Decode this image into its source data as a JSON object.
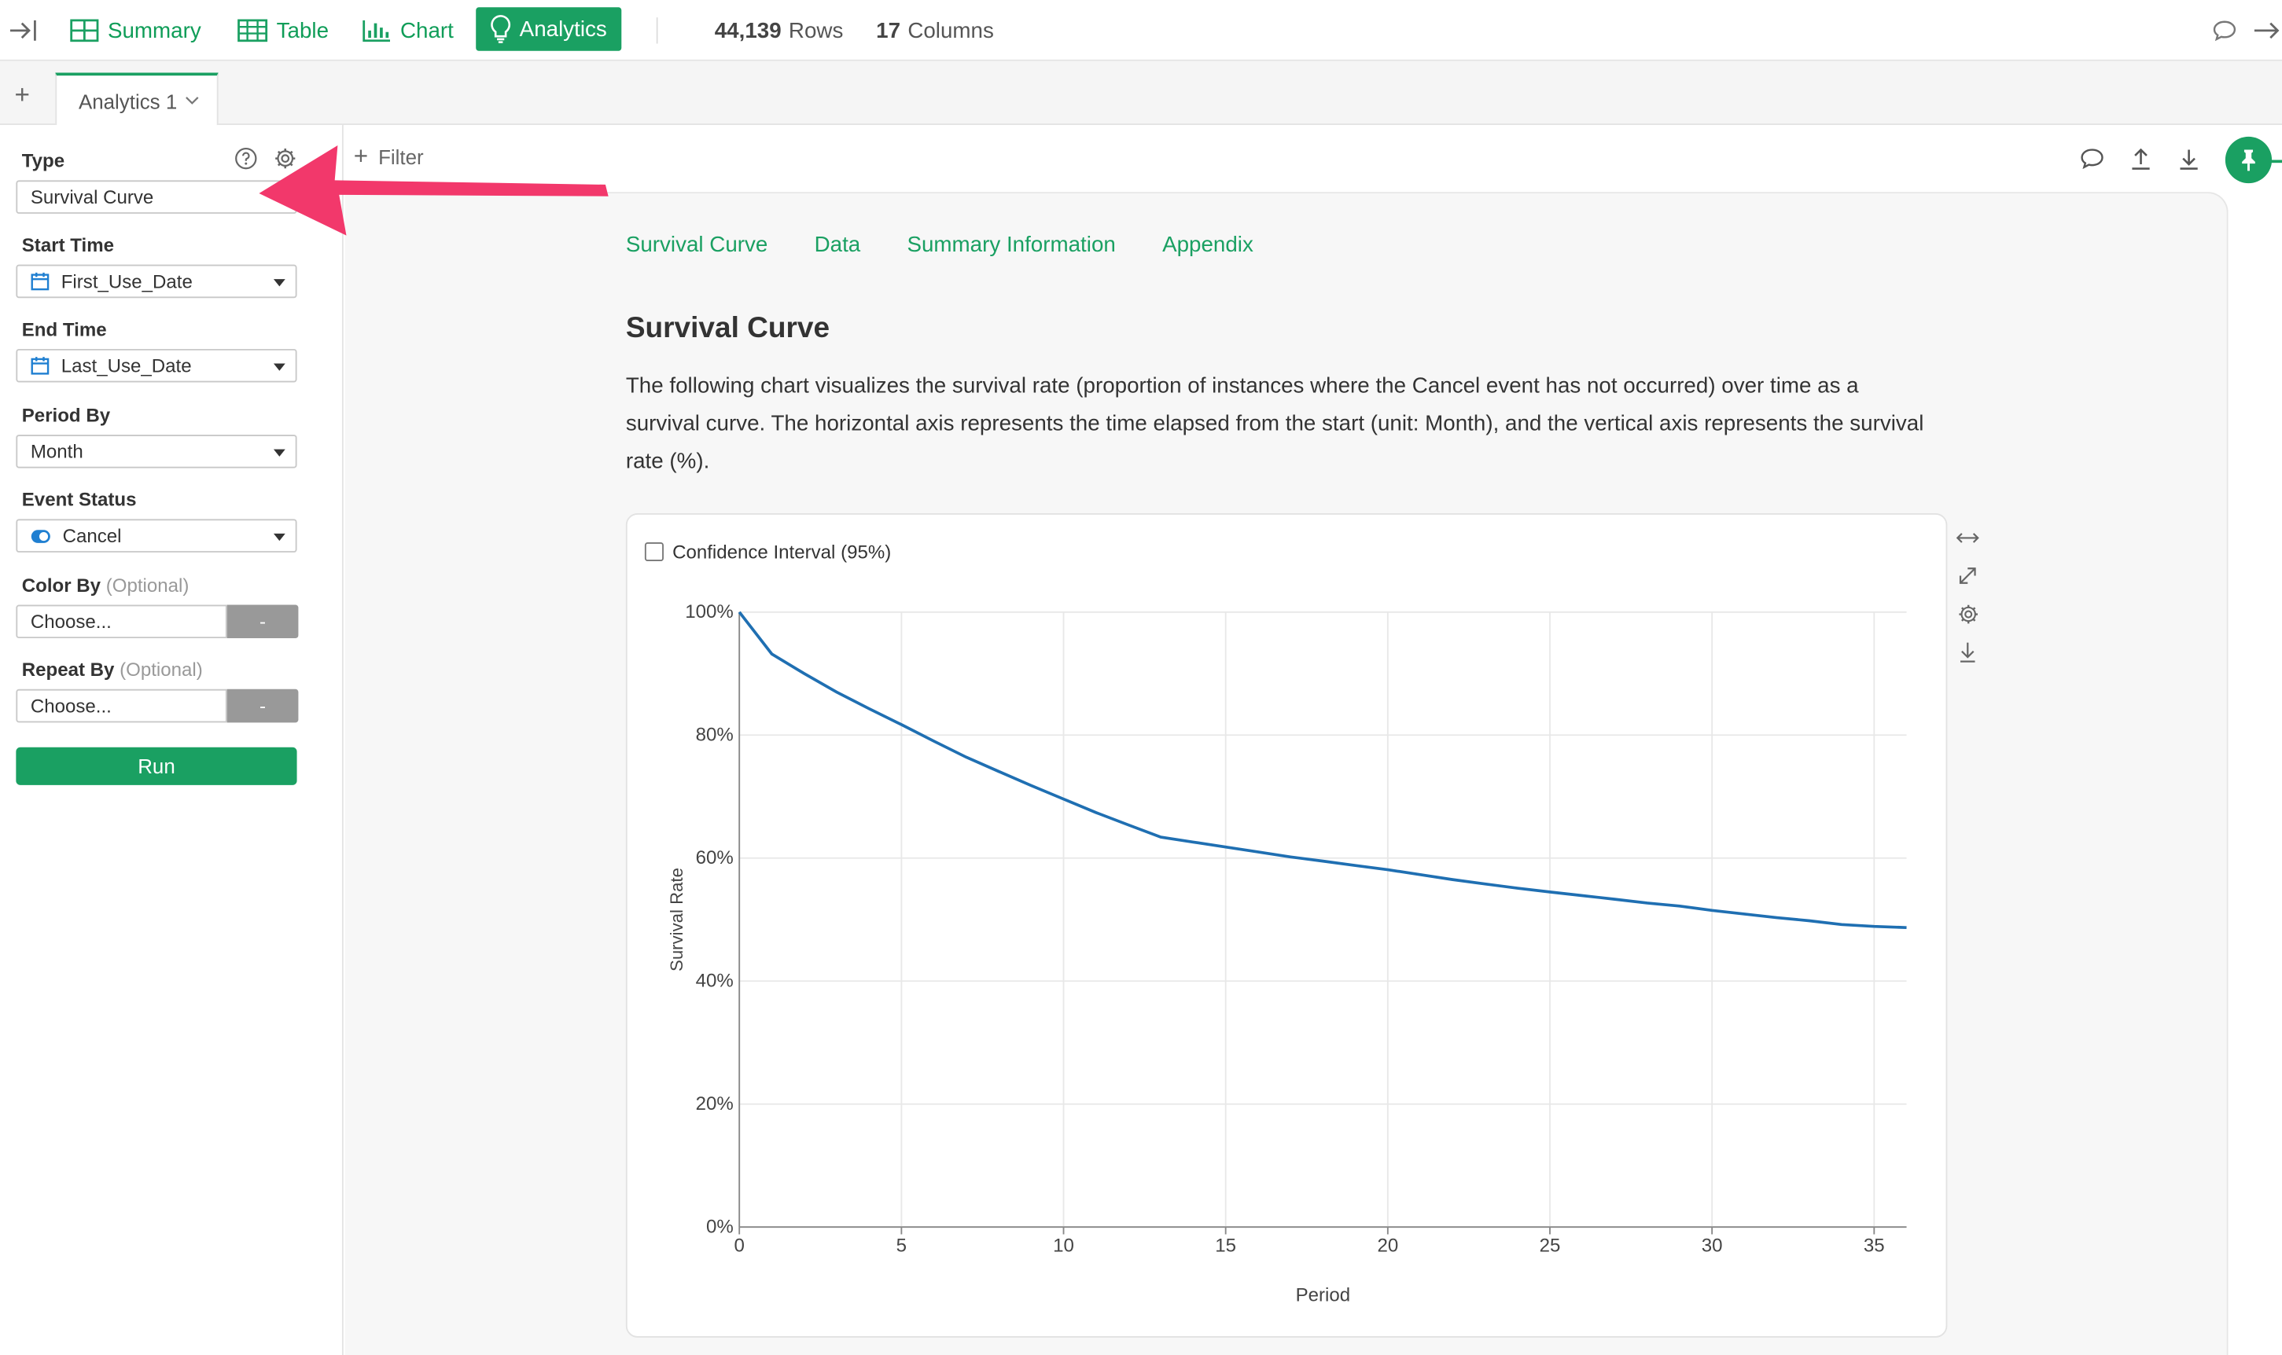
{
  "topbar": {
    "tabs": [
      {
        "label": "Summary",
        "icon": "summary-grid-icon"
      },
      {
        "label": "Table",
        "icon": "table-icon"
      },
      {
        "label": "Chart",
        "icon": "bar-chart-icon"
      },
      {
        "label": "Analytics",
        "icon": "lightbulb-icon",
        "active": true
      }
    ],
    "rows_count": "44,139",
    "rows_label": "Rows",
    "columns_count": "17",
    "columns_label": "Columns"
  },
  "tabbar": {
    "add_label": "+",
    "analytics_tab_label": "Analytics 1"
  },
  "left_panel": {
    "type_label": "Type",
    "type_value": "Survival Curve",
    "start_time_label": "Start Time",
    "start_time_value": "First_Use_Date",
    "end_time_label": "End Time",
    "end_time_value": "Last_Use_Date",
    "period_by_label": "Period By",
    "period_by_value": "Month",
    "event_status_label": "Event Status",
    "event_status_value": "Cancel",
    "color_by_label": "Color By",
    "color_by_optional": "(Optional)",
    "color_by_value": "Choose...",
    "repeat_by_label": "Repeat By",
    "repeat_by_optional": "(Optional)",
    "repeat_by_value": "Choose...",
    "dash_label": "-",
    "run_label": "Run"
  },
  "main": {
    "filter_label": "Filter",
    "nav": [
      "Survival Curve",
      "Data",
      "Summary Information",
      "Appendix"
    ],
    "title": "Survival Curve",
    "description": "The following chart visualizes the survival rate (proportion of instances where the Cancel event has not occurred) over time as a survival curve. The horizontal axis represents the time elapsed from the start (unit: Month), and the vertical axis represents the survival rate (%).",
    "confidence_label": "Confidence Interval (95%)"
  },
  "colors": {
    "accent": "#1aa062",
    "line": "#1f6fb2",
    "annotation_arrow": "#f2386b"
  },
  "chart_data": {
    "type": "line",
    "xlabel": "Period",
    "ylabel": "Survival Rate",
    "xlim": [
      0,
      36
    ],
    "ylim": [
      0,
      100
    ],
    "x_ticks": [
      0,
      5,
      10,
      15,
      20,
      25,
      30,
      35
    ],
    "y_ticks": [
      "0%",
      "20%",
      "40%",
      "60%",
      "80%",
      "100%"
    ],
    "y_tick_values": [
      0,
      20,
      40,
      60,
      80,
      100
    ],
    "grid": true,
    "series": [
      {
        "x": [
          0,
          1,
          2,
          3,
          4,
          5,
          6,
          7,
          8,
          9,
          10,
          11,
          12,
          13,
          14,
          15,
          16,
          17,
          18,
          19,
          20,
          21,
          22,
          23,
          24,
          25,
          26,
          27,
          28,
          29,
          30,
          31,
          32,
          33,
          34,
          35,
          36
        ],
        "values": [
          100,
          93.2,
          90.0,
          87.0,
          84.3,
          81.7,
          79.0,
          76.4,
          74.1,
          71.8,
          69.6,
          67.4,
          65.4,
          63.4,
          62.6,
          61.8,
          61.0,
          60.2,
          59.5,
          58.8,
          58.1,
          57.3,
          56.5,
          55.8,
          55.1,
          54.5,
          53.9,
          53.3,
          52.7,
          52.2,
          51.5,
          50.9,
          50.3,
          49.8,
          49.2,
          48.9,
          48.7
        ]
      }
    ]
  }
}
